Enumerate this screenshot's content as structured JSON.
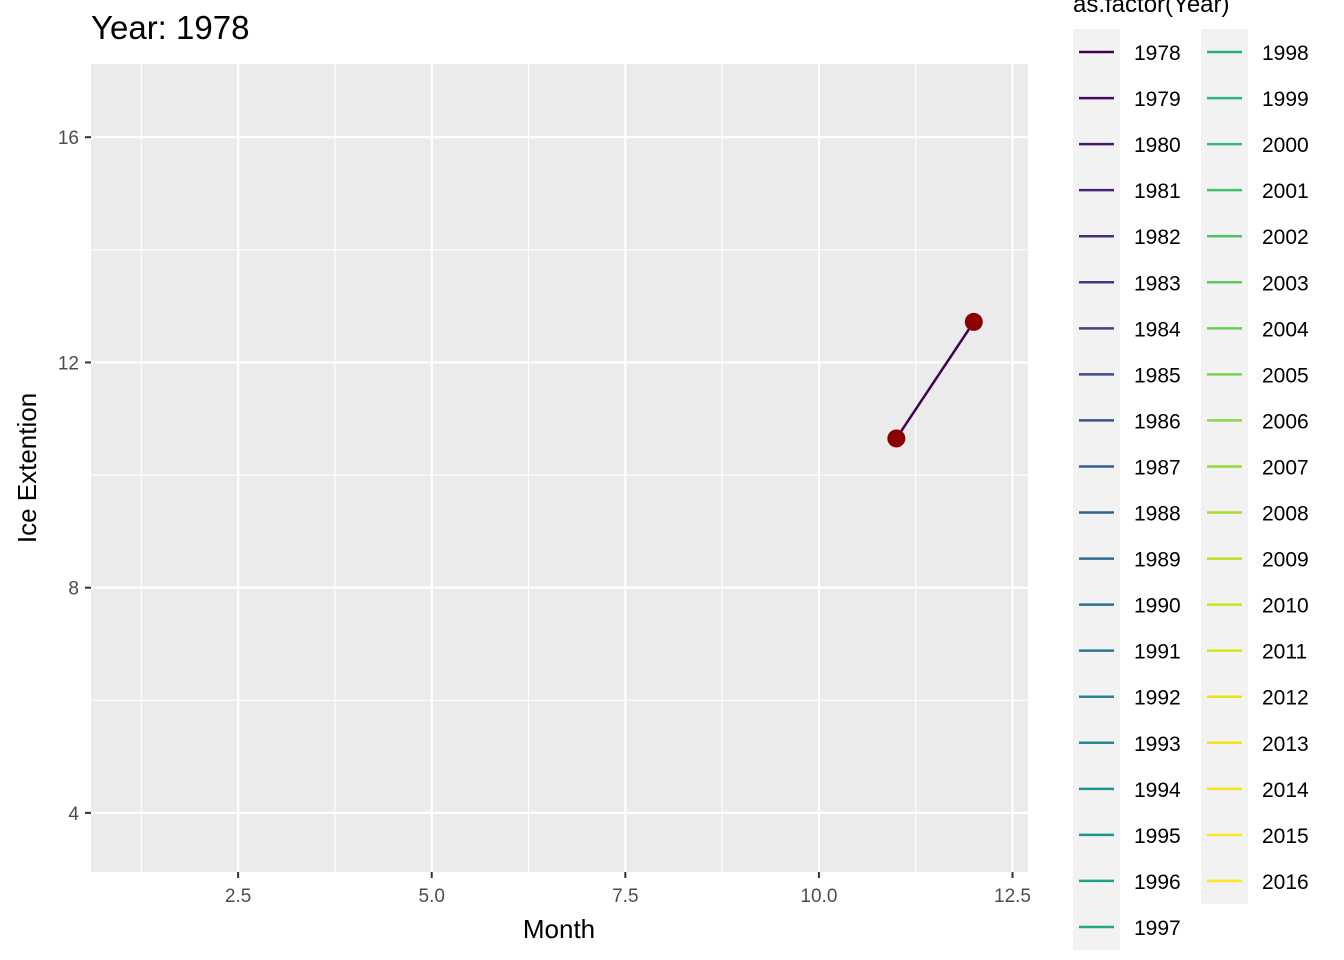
{
  "chart_data": {
    "type": "line",
    "title": "Year: 1978",
    "xlabel": "Month",
    "ylabel": "Ice Extention",
    "xlim": [
      0.6,
      12.7
    ],
    "ylim": [
      2.95,
      17.3
    ],
    "x_ticks": [
      2.5,
      5.0,
      7.5,
      10.0,
      12.5
    ],
    "x_tick_labels": [
      "2.5",
      "5.0",
      "7.5",
      "10.0",
      "12.5"
    ],
    "y_ticks": [
      4,
      8,
      12,
      16
    ],
    "y_tick_labels": [
      "4",
      "8",
      "12",
      "16"
    ],
    "grid": true,
    "legend": {
      "title": "as.factor(Year)",
      "placement": "right",
      "columns": 2,
      "entries": [
        "1978",
        "1979",
        "1980",
        "1981",
        "1982",
        "1983",
        "1984",
        "1985",
        "1986",
        "1987",
        "1988",
        "1989",
        "1990",
        "1991",
        "1992",
        "1993",
        "1994",
        "1995",
        "1996",
        "1997",
        "1998",
        "1999",
        "2000",
        "2001",
        "2002",
        "2003",
        "2004",
        "2005",
        "2006",
        "2007",
        "2008",
        "2009",
        "2010",
        "2011",
        "2012",
        "2013",
        "2014",
        "2015",
        "2016"
      ],
      "colors": [
        "#440154",
        "#470D60",
        "#48186A",
        "#482374",
        "#472D7B",
        "#453781",
        "#424086",
        "#3E4A89",
        "#3B528B",
        "#375B8D",
        "#33638D",
        "#2F6C8E",
        "#2C738E",
        "#297B8E",
        "#26828E",
        "#23898E",
        "#21918C",
        "#1F988B",
        "#1FA088",
        "#22A884",
        "#27AD81",
        "#2EB37C",
        "#38B977",
        "#44BF70",
        "#52C569",
        "#5EC962",
        "#6CCD5A",
        "#7AD151",
        "#8BD646",
        "#9BD93C",
        "#AADC32",
        "#BBDF27",
        "#CBE11E",
        "#D9E219",
        "#E7E419",
        "#F1E51D",
        "#F6E620",
        "#FAE622",
        "#FDE725"
      ]
    },
    "series": [
      {
        "x": [
          11,
          12
        ],
        "y": [
          10.65,
          12.72
        ],
        "line_color": "#440154",
        "point_color": "#8B0000"
      }
    ]
  }
}
